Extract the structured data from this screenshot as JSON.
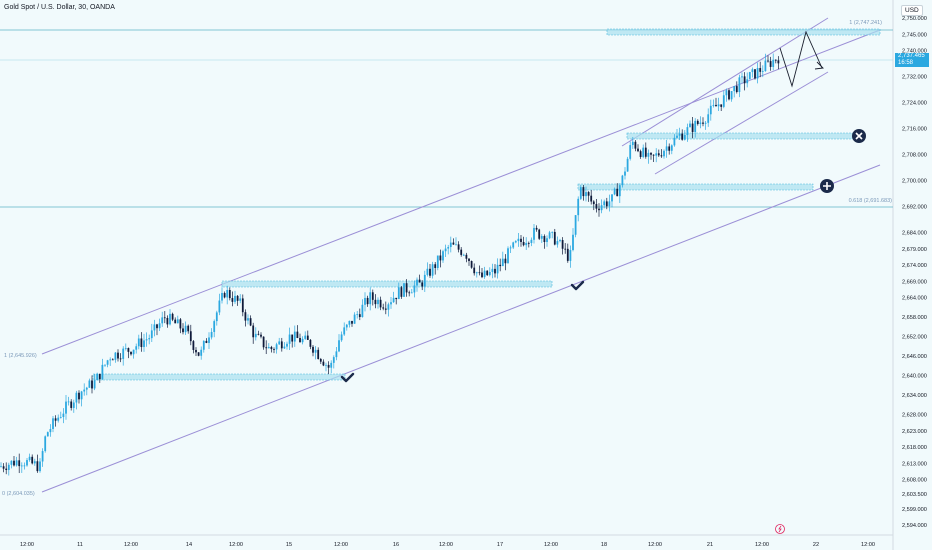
{
  "header": {
    "symbol_title": "Gold Spot / U.S. Dollar, 30, OANDA",
    "currency": "USD"
  },
  "price_badge": {
    "price": "2,737.465",
    "countdown": "16:58"
  },
  "colors": {
    "background": "#f1fafc",
    "up_candle": "#2ba8e0",
    "down_candle": "#0f1a3a",
    "channel_line": "#9b8fd6",
    "zone_fill": "#a9dff0",
    "zone_border": "#4fb8dc",
    "fib_line": "#5fb4c8"
  },
  "fib_labels": {
    "top": "1 (2,747.241)",
    "mid": "0.618 (2,691.683)",
    "left_top": "1 (2,645.926)",
    "left_bottom": "0 (2,604.035)"
  },
  "markers": [
    "checkmark-icon",
    "checkmark-icon",
    "close-icon",
    "plus-icon",
    "lightning-icon"
  ],
  "chart_data": {
    "type": "candlestick",
    "title": "Gold Spot / U.S. Dollar, 30, OANDA",
    "y_axis": {
      "unit": "USD",
      "range": [
        2592.0,
        2752.0
      ],
      "ticks": [
        2594.0,
        2599.0,
        2603.5,
        2608.0,
        2613.0,
        2618.0,
        2623.0,
        2628.0,
        2634.0,
        2640.0,
        2646.0,
        2652.0,
        2658.0,
        2664.0,
        2669.0,
        2674.0,
        2679.0,
        2684.0,
        2692.0,
        2700.0,
        2708.0,
        2716.0,
        2724.0,
        2732.0,
        2740.0,
        2745.0,
        2750.0
      ],
      "tick_labels": [
        "2,594.000",
        "2,599.000",
        "2,603.500",
        "2,608.000",
        "2,613.000",
        "2,618.000",
        "2,623.000",
        "2,628.000",
        "2,634.000",
        "2,640.000",
        "2,646.000",
        "2,652.000",
        "2,658.000",
        "2,664.000",
        "2,669.000",
        "2,674.000",
        "2,679.000",
        "2,684.000",
        "2,692.000",
        "2,700.000",
        "2,708.000",
        "2,716.000",
        "2,724.000",
        "2,732.000",
        "2,740.000",
        "2,745.000",
        "2,750.000"
      ]
    },
    "x_axis": {
      "tick_labels": [
        "12:00",
        "11",
        "12:00",
        "14",
        "12:00",
        "15",
        "12:00",
        "16",
        "12:00",
        "17",
        "12:00",
        "18",
        "12:00",
        "21",
        "12:00",
        "22",
        "12:00"
      ]
    },
    "last_price": 2737.465,
    "channels": [
      {
        "name": "",
        "lines": [
          [
            0,
            2645.926
          ],
          [
            1,
            2747.241
          ]
        ]
      }
    ],
    "levels": [
      {
        "label": "1 (2,747.241)",
        "value": 2747.241
      },
      {
        "label": "0.618 (2,691.683)",
        "value": 2691.683
      }
    ],
    "zones": [
      2641.0,
      2666.5,
      2698.5,
      2712.0,
      2745.5
    ],
    "grid": false,
    "legend": "none"
  }
}
